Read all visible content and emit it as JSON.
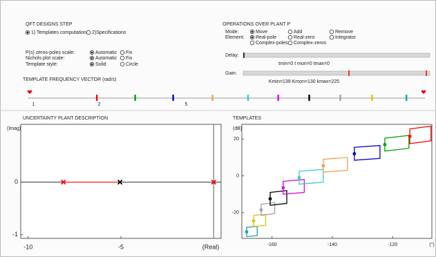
{
  "left_panel": {
    "title": "QFT DESIGNS STEP",
    "steps": [
      {
        "label": "1) Templates computation",
        "selected": true
      },
      {
        "label": "2)Specifications",
        "selected": false
      }
    ],
    "settings": [
      {
        "label": "P(s) zeros-poles scale:",
        "options": [
          {
            "label": "Automatic",
            "selected": true
          },
          {
            "label": "Fix",
            "selected": false
          }
        ]
      },
      {
        "label": "Nichols plot scale:",
        "options": [
          {
            "label": "Automatic",
            "selected": true
          },
          {
            "label": "Fix",
            "selected": false
          }
        ]
      },
      {
        "label": "Template style:",
        "options": [
          {
            "label": "Solid",
            "selected": true
          },
          {
            "label": "Circle",
            "selected": false
          }
        ]
      }
    ]
  },
  "right_panel": {
    "title": "OPERATIONS OVER PLANT P",
    "mode": {
      "label": "Mode:",
      "options": [
        {
          "label": "Move",
          "selected": true
        },
        {
          "label": "Add",
          "selected": false
        },
        {
          "label": "Remove",
          "selected": false
        }
      ]
    },
    "element": {
      "label": "Element:",
      "options": [
        {
          "label": "Real-pole",
          "selected": true
        },
        {
          "label": "Real-zero",
          "selected": false
        },
        {
          "label": "Integrator",
          "selected": false
        },
        {
          "label": "Complex-poles",
          "selected": false
        },
        {
          "label": "Complex-zeros",
          "selected": false
        }
      ]
    },
    "delay": {
      "label": "Delay:",
      "readout": "tmin=0  t mon=0  tmax=0"
    },
    "gain": {
      "label": "Gain:",
      "readout": "Kmin=139  Kmon=130  kmax=225"
    }
  },
  "frequency_vector": {
    "title": "TEMPLATE FREQUENCY VECTOR (rad/s)",
    "log": true,
    "xlim": [
      0.94,
      62
    ],
    "xticks": [
      1,
      2,
      5
    ],
    "frequencies": [
      1.95,
      2.92,
      4.36,
      6.6,
      9.6,
      13.2,
      18.3,
      25.4,
      35.5,
      51
    ],
    "colors": [
      "#ff0000",
      "#00a000",
      "#0000cc",
      "#f0a050",
      "#33cccc",
      "#e000e0",
      "#000000",
      "#a0a0a0",
      "#e6c200",
      "#1aa3a3"
    ]
  },
  "uncertainty_plot": {
    "title": "UNCERTAINTY PLANT DESCRIPTION",
    "ylabel": "(Imag)",
    "xlabel": "(Real)",
    "xlim": [
      -10.4,
      0.4
    ],
    "ylim": [
      -1.07,
      1.1
    ],
    "xticks": [
      -10,
      -5
    ],
    "yticks": [
      0,
      -1
    ],
    "segment_color": "#ff4040",
    "points": [
      {
        "real": -8.1,
        "imag": 0,
        "color": "#ff0000"
      },
      {
        "real": -5.05,
        "imag": 0,
        "color": "#000000"
      },
      {
        "real": 0,
        "imag": 0,
        "color": "#ff0000"
      }
    ]
  },
  "templates_plot": {
    "title": "TEMPLATES",
    "ylabel": "(dB)",
    "xlabel": "(°)",
    "xlim": [
      -170,
      -107
    ],
    "ylim": [
      -34,
      28
    ],
    "xticks": [
      -160,
      -140,
      -120
    ],
    "yticks": [
      20,
      0,
      -20
    ],
    "templates": [
      {
        "color": "#1aa3a3",
        "nominal": [
          -168.4,
          -30.5
        ],
        "phase": [
          -168.4,
          -164.9,
          -164.9,
          -168.4
        ],
        "gain": [
          -28,
          -27.5,
          -32.5,
          -33
        ]
      },
      {
        "color": "#e6c200",
        "nominal": [
          -166.1,
          -24.5
        ],
        "phase": [
          -166.1,
          -162.1,
          -162.1,
          -166.1
        ],
        "gain": [
          -21.5,
          -21,
          -27,
          -27.5
        ]
      },
      {
        "color": "#a0a0a0",
        "nominal": [
          -163.6,
          -18.5
        ],
        "phase": [
          -163.6,
          -159.1,
          -159.1,
          -163.6
        ],
        "gain": [
          -15.5,
          -14.5,
          -20.5,
          -21.5
        ]
      },
      {
        "color": "#000000",
        "nominal": [
          -160.6,
          -12.5
        ],
        "phase": [
          -160.6,
          -155.1,
          -155.1,
          -160.6
        ],
        "gain": [
          -9,
          -8,
          -15,
          -16
        ]
      },
      {
        "color": "#e000e0",
        "nominal": [
          -156.3,
          -6.5
        ],
        "phase": [
          -156.3,
          -149.3,
          -149.3,
          -156.3
        ],
        "gain": [
          -3,
          -2,
          -9,
          -10
        ]
      },
      {
        "color": "#33cccc",
        "nominal": [
          -151,
          -1
        ],
        "phase": [
          -151,
          -143,
          -143,
          -151
        ],
        "gain": [
          2.5,
          3.5,
          -3.5,
          -4.5
        ]
      },
      {
        "color": "#f0a050",
        "nominal": [
          -143,
          5.5
        ],
        "phase": [
          -143,
          -135,
          -135,
          -143
        ],
        "gain": [
          9,
          10,
          3,
          2
        ]
      },
      {
        "color": "#0000cc",
        "nominal": [
          -132.7,
          12
        ],
        "phase": [
          -132.7,
          -124.2,
          -124.2,
          -132.7
        ],
        "gain": [
          15.5,
          16.5,
          9.5,
          8.5
        ]
      },
      {
        "color": "#00a000",
        "nominal": [
          -122.6,
          17
        ],
        "phase": [
          -122.6,
          -114.6,
          -114.6,
          -122.6
        ],
        "gain": [
          20.5,
          22,
          15,
          13.5
        ]
      },
      {
        "color": "#ff0000",
        "nominal": [
          -114.3,
          21.5
        ],
        "phase": [
          -114.3,
          -107.3,
          -107.3,
          -114.3
        ],
        "gain": [
          25.5,
          27,
          19,
          17.5
        ]
      }
    ]
  }
}
